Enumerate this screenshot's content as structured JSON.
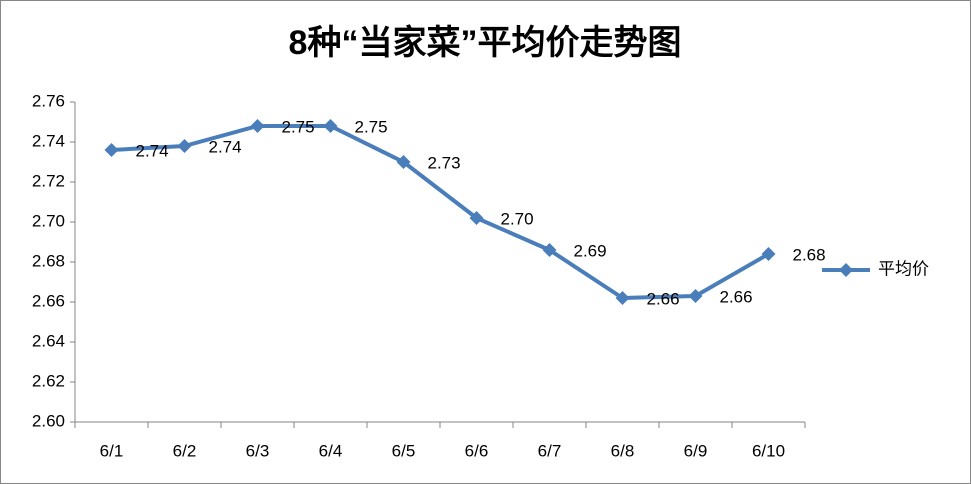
{
  "chart_data": {
    "type": "line",
    "title": "8种“当家菜”平均价走势图",
    "categories": [
      "6/1",
      "6/2",
      "6/3",
      "6/4",
      "6/5",
      "6/6",
      "6/7",
      "6/8",
      "6/9",
      "6/10"
    ],
    "series": [
      {
        "name": "平均价",
        "color": "#4a7ebb",
        "values": [
          2.736,
          2.738,
          2.748,
          2.748,
          2.73,
          2.702,
          2.686,
          2.662,
          2.663,
          2.684
        ],
        "value_labels": [
          "2.74",
          "2.74",
          "2.75",
          "2.75",
          "2.73",
          "2.70",
          "2.69",
          "2.66",
          "2.66",
          "2.68"
        ]
      }
    ],
    "ylim": [
      2.6,
      2.76
    ],
    "yticks": [
      {
        "value": 2.6,
        "label": "2.60"
      },
      2.62,
      2.64,
      2.66,
      2.68,
      {
        "value": 2.7,
        "label": "2.70"
      },
      2.72,
      2.74,
      2.76
    ],
    "grid": false,
    "legend": "right"
  }
}
